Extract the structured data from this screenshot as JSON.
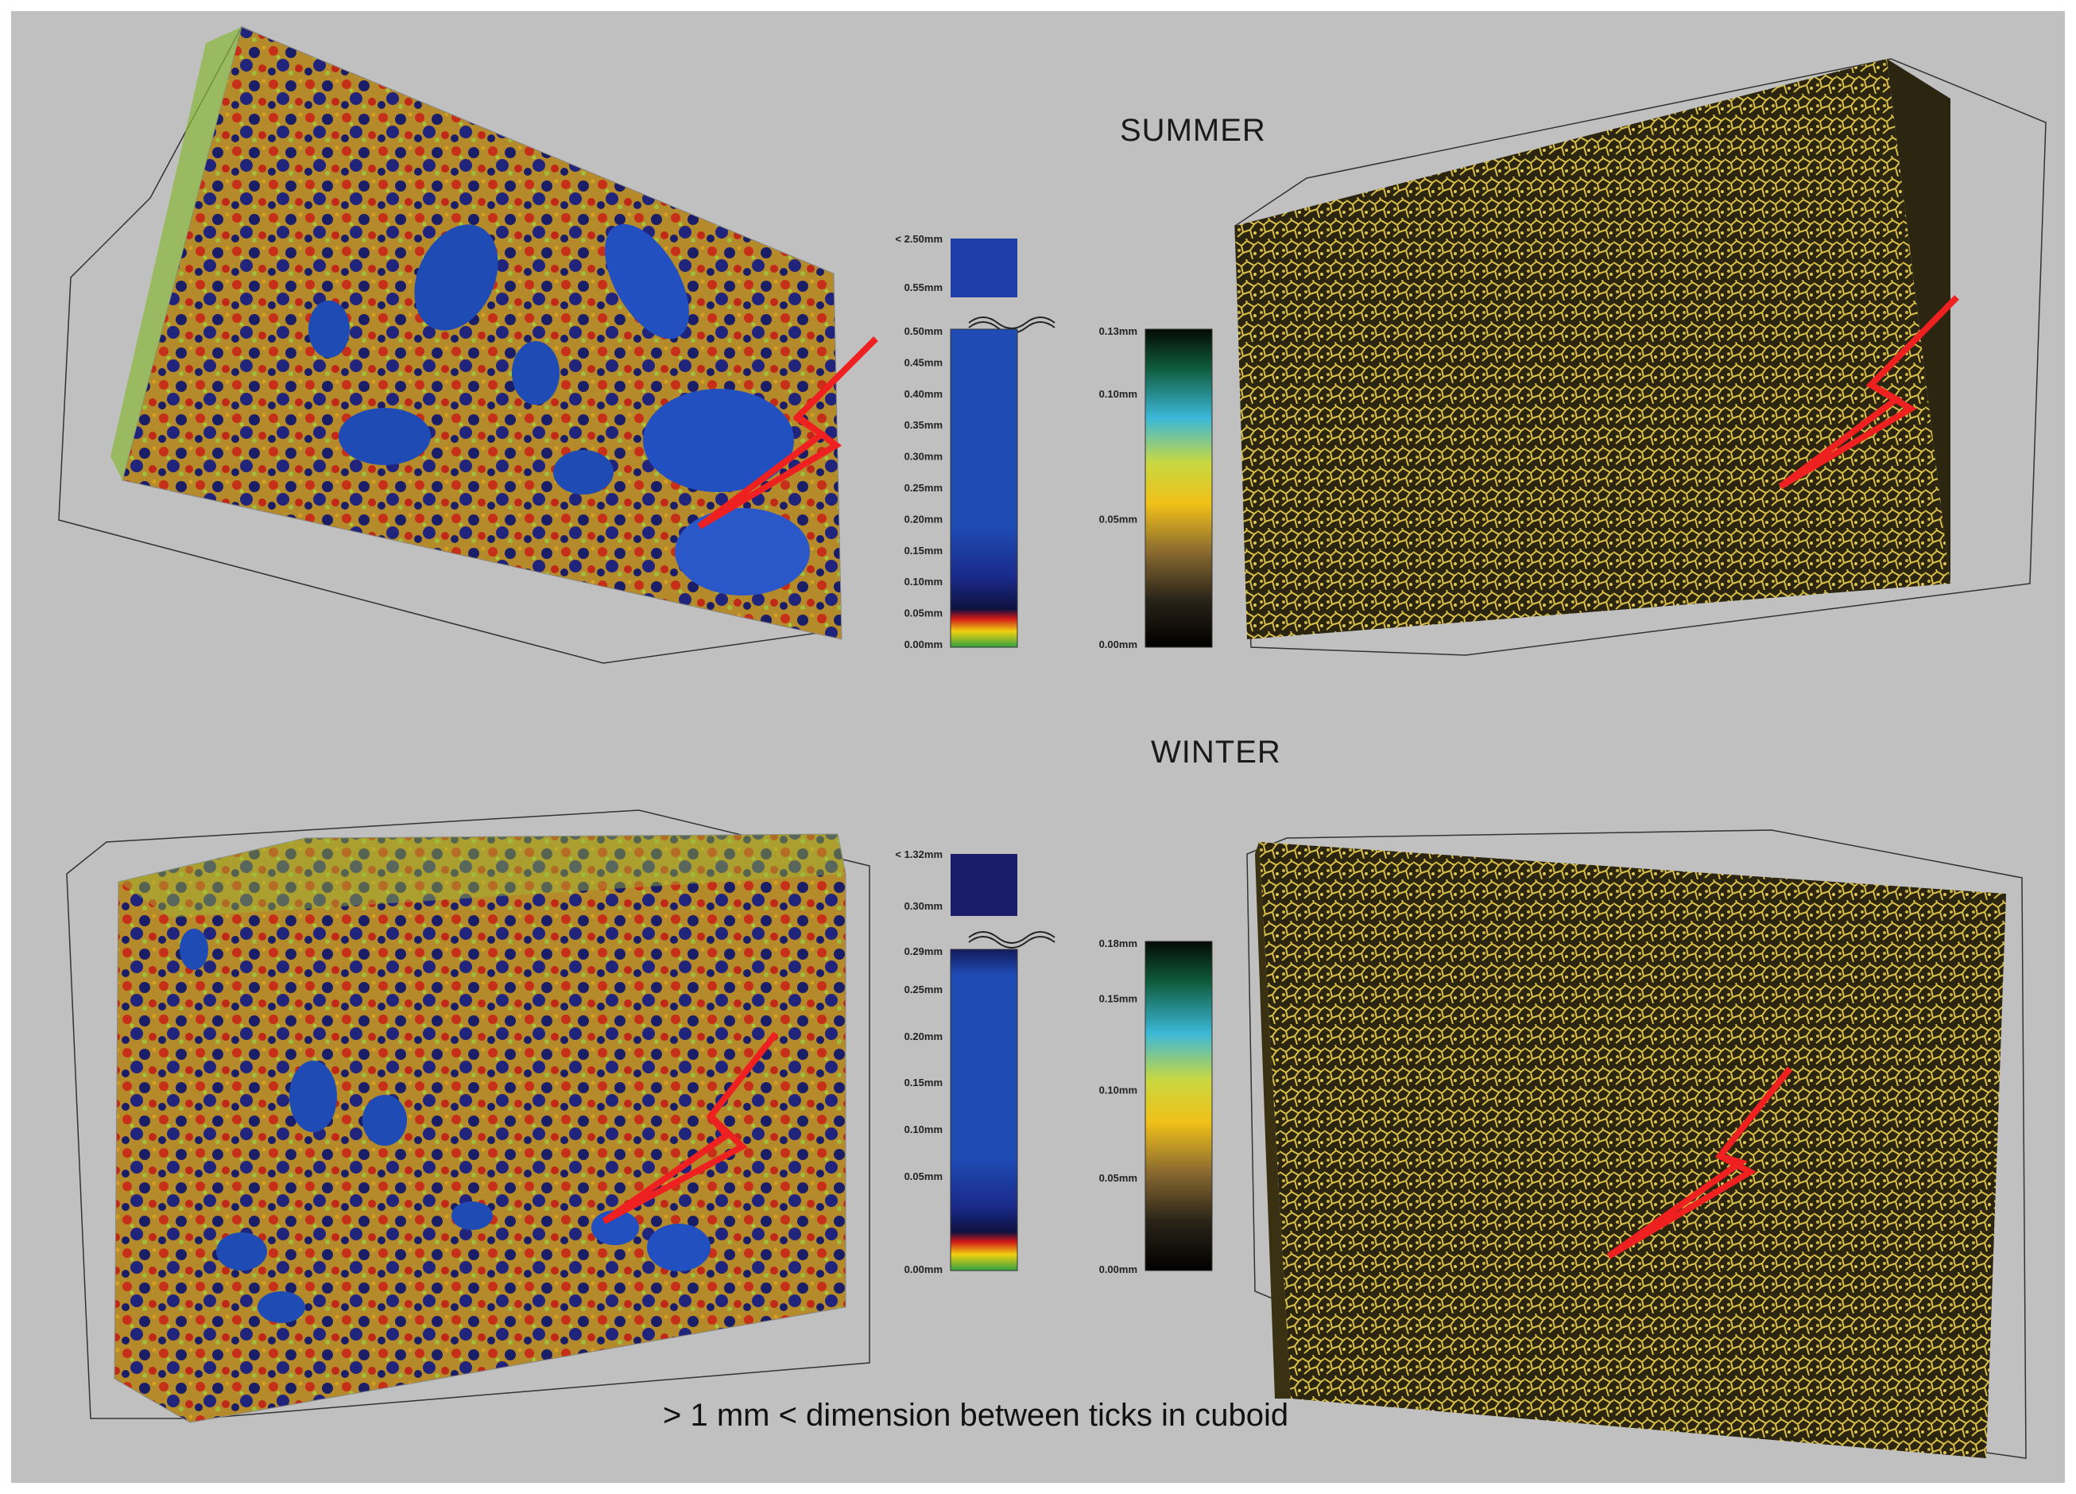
{
  "titles": {
    "summer": "SUMMER",
    "winter": "WINTER"
  },
  "caption": "> 1 mm < dimension between ticks in cuboid",
  "summer": {
    "pore_scale": {
      "top_labels": [
        "< 2.50mm",
        "0.55mm"
      ],
      "ticks": [
        "0.50mm",
        "0.45mm",
        "0.40mm",
        "0.35mm",
        "0.30mm",
        "0.25mm",
        "0.20mm",
        "0.15mm",
        "0.10mm",
        "0.05mm",
        "0.00mm"
      ]
    },
    "wall_scale": {
      "ticks": [
        "0.13mm",
        "0.10mm",
        "0.05mm",
        "0.00mm"
      ]
    }
  },
  "winter": {
    "pore_scale": {
      "top_labels": [
        "< 1.32mm",
        "0.30mm"
      ],
      "ticks": [
        "0.29mm",
        "0.25mm",
        "0.20mm",
        "0.15mm",
        "0.10mm",
        "0.05mm",
        "0.00mm"
      ]
    },
    "wall_scale": {
      "ticks": [
        "0.18mm",
        "0.15mm",
        "0.10mm",
        "0.05mm",
        "0.00mm"
      ]
    }
  },
  "colors": {
    "background": "#c0c0c0",
    "pore_blue": "#1e48b8",
    "pore_navy": "#141a5e",
    "wall_gold": "#c8b030",
    "arrow_red": "#ee2020"
  }
}
